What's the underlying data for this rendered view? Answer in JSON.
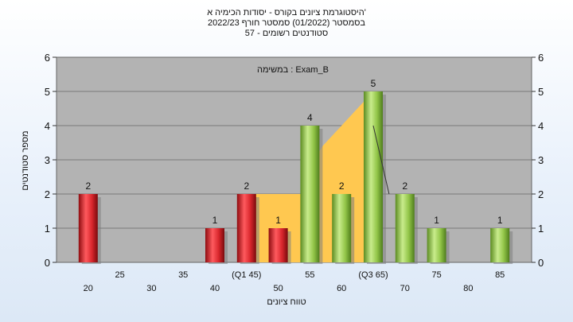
{
  "chart_data": {
    "type": "bar",
    "title_lines": [
      "היסטוגרמת ציונים בקורס - יסודות הכימיה א'",
      "בסמסטר  (01/2022)  סמסטר חורף 2022/23",
      "57 - סטודנטים רשומים"
    ],
    "annotation": "במשימה : Exam_B",
    "xlabel": "טווח ציונים",
    "ylabel": "מספר סטודנטים",
    "ylim": [
      0,
      6
    ],
    "yticks": [
      0,
      1,
      2,
      3,
      4,
      5,
      6
    ],
    "xlim": [
      15,
      90
    ],
    "x_ticks_upper": [
      {
        "x": 25,
        "label": "25"
      },
      {
        "x": 35,
        "label": "35"
      },
      {
        "x": 45,
        "label": "(Q1 45)"
      },
      {
        "x": 55,
        "label": "55"
      },
      {
        "x": 65,
        "label": "(Q3 65)"
      },
      {
        "x": 75,
        "label": "75"
      },
      {
        "x": 85,
        "label": "85"
      }
    ],
    "x_ticks_lower": [
      {
        "x": 20,
        "label": "20"
      },
      {
        "x": 30,
        "label": "30"
      },
      {
        "x": 40,
        "label": "40"
      },
      {
        "x": 50,
        "label": "50"
      },
      {
        "x": 60,
        "label": "60"
      },
      {
        "x": 70,
        "label": "70"
      },
      {
        "x": 80,
        "label": "80"
      }
    ],
    "bars": [
      {
        "x": 20,
        "value": 2,
        "color": "red"
      },
      {
        "x": 40,
        "value": 1,
        "color": "red"
      },
      {
        "x": 45,
        "value": 2,
        "color": "red"
      },
      {
        "x": 50,
        "value": 1,
        "color": "red"
      },
      {
        "x": 55,
        "value": 4,
        "color": "green"
      },
      {
        "x": 60,
        "value": 2,
        "color": "green"
      },
      {
        "x": 65,
        "value": 5,
        "color": "green"
      },
      {
        "x": 70,
        "value": 2,
        "color": "green"
      },
      {
        "x": 75,
        "value": 1,
        "color": "green"
      },
      {
        "x": 85,
        "value": 1,
        "color": "green"
      }
    ],
    "iqr_area": [
      [
        45,
        2
      ],
      [
        55,
        2
      ],
      [
        55,
        2.8
      ],
      [
        57,
        3.4
      ],
      [
        60,
        4.0
      ],
      [
        62,
        4.4
      ],
      [
        65,
        5
      ]
    ],
    "median_line": [
      [
        65,
        4
      ],
      [
        67.5,
        2
      ]
    ],
    "colors": {
      "plot_bg": "#b3b3b3",
      "grid": "#7a7a7a",
      "iqr_fill": "#ffc850",
      "red_bar": "#d8262c",
      "green_bar": "#92c548"
    }
  }
}
